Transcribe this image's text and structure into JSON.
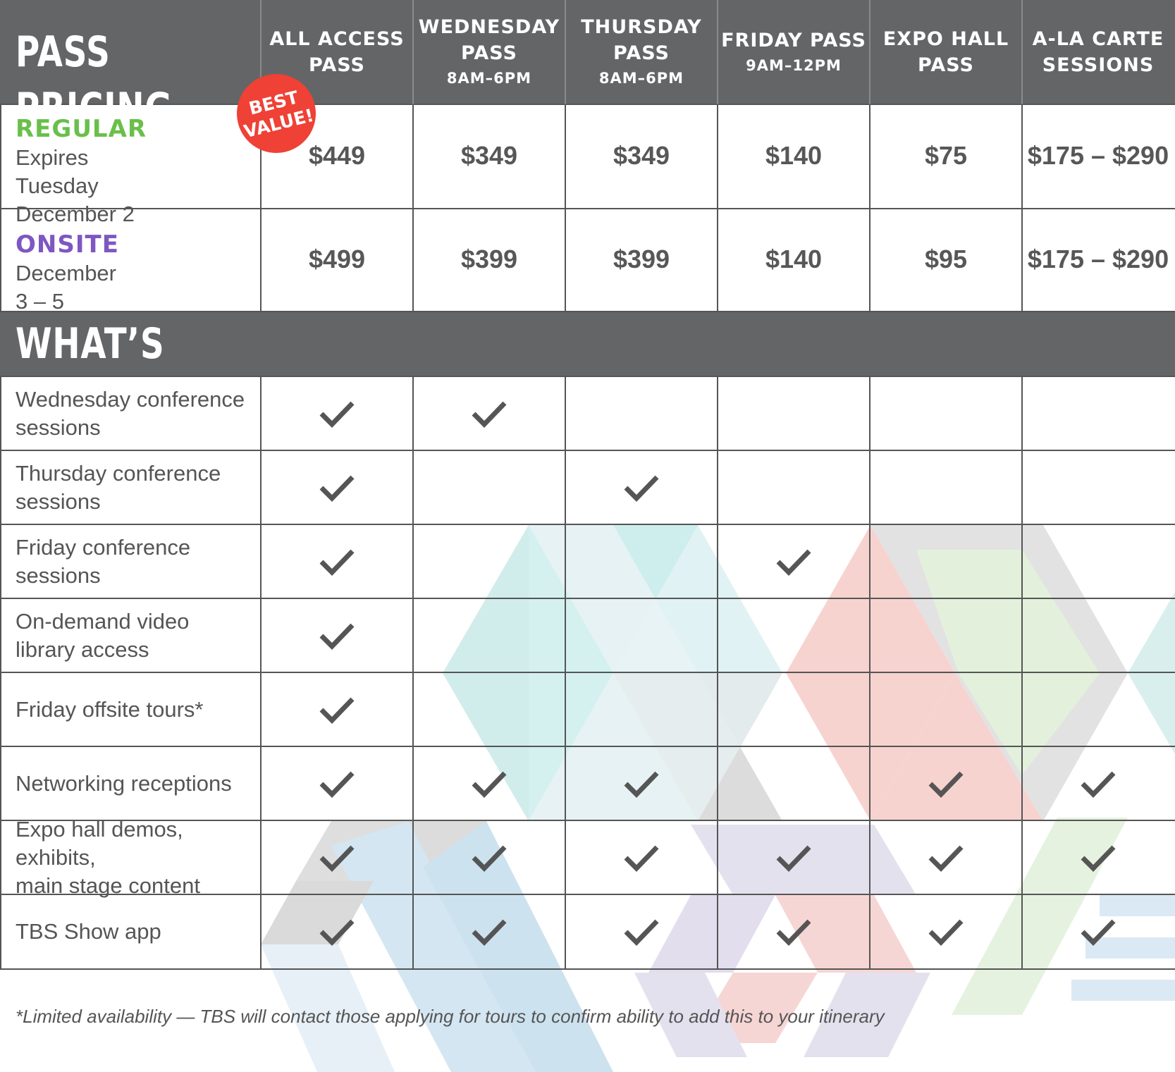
{
  "header": {
    "title": "PASS PRICING",
    "columns": [
      {
        "name": "ALL ACCESS\nPASS",
        "time": ""
      },
      {
        "name": "WEDNESDAY\nPASS",
        "time": "8AM–6PM"
      },
      {
        "name": "THURSDAY\nPASS",
        "time": "8AM–6PM"
      },
      {
        "name": "FRIDAY PASS",
        "time": "9AM–12PM"
      },
      {
        "name": "EXPO HALL\nPASS",
        "time": ""
      },
      {
        "name": "A-LA CARTE\nSESSIONS",
        "time": ""
      }
    ],
    "badge_line1": "BEST",
    "badge_line2": "VALUE!"
  },
  "pricing": [
    {
      "tier": "REGULAR",
      "color": "#6abf4b",
      "desc": "Expires Tuesday\nDecember 2",
      "prices": [
        "$449",
        "$349",
        "$349",
        "$140",
        "$75",
        "$175 – $290"
      ]
    },
    {
      "tier": "ONSITE",
      "color": "#7e57c2",
      "desc": "December 3 – 5",
      "prices": [
        "$499",
        "$399",
        "$399",
        "$140",
        "$95",
        "$175 – $290"
      ]
    }
  ],
  "included": {
    "title": "WHAT’S INCLUDED",
    "features": [
      {
        "label": "Wednesday conference\nsessions",
        "checks": [
          true,
          true,
          false,
          false,
          false,
          false
        ]
      },
      {
        "label": "Thursday conference\nsessions",
        "checks": [
          true,
          false,
          true,
          false,
          false,
          false
        ]
      },
      {
        "label": "Friday conference\nsessions",
        "checks": [
          true,
          false,
          false,
          true,
          false,
          false
        ]
      },
      {
        "label": "On-demand video\nlibrary access",
        "checks": [
          true,
          false,
          false,
          false,
          false,
          false
        ]
      },
      {
        "label": "Friday offsite tours*",
        "checks": [
          true,
          false,
          false,
          false,
          false,
          false
        ]
      },
      {
        "label": "Networking receptions",
        "checks": [
          true,
          true,
          true,
          false,
          true,
          true
        ]
      },
      {
        "label": "Expo hall demos, exhibits,\nmain stage content",
        "checks": [
          true,
          true,
          true,
          true,
          true,
          true
        ]
      },
      {
        "label": "TBS Show app",
        "checks": [
          true,
          true,
          true,
          true,
          true,
          true
        ]
      }
    ]
  },
  "footnote": "*Limited availability — TBS will contact those applying for tours to confirm ability to add this to your itinerary",
  "colors": {
    "header_bg": "#646567",
    "grid_line": "#555555",
    "check": "#555555",
    "badge": "#ef4136"
  },
  "icons": {
    "check": "check-icon"
  }
}
